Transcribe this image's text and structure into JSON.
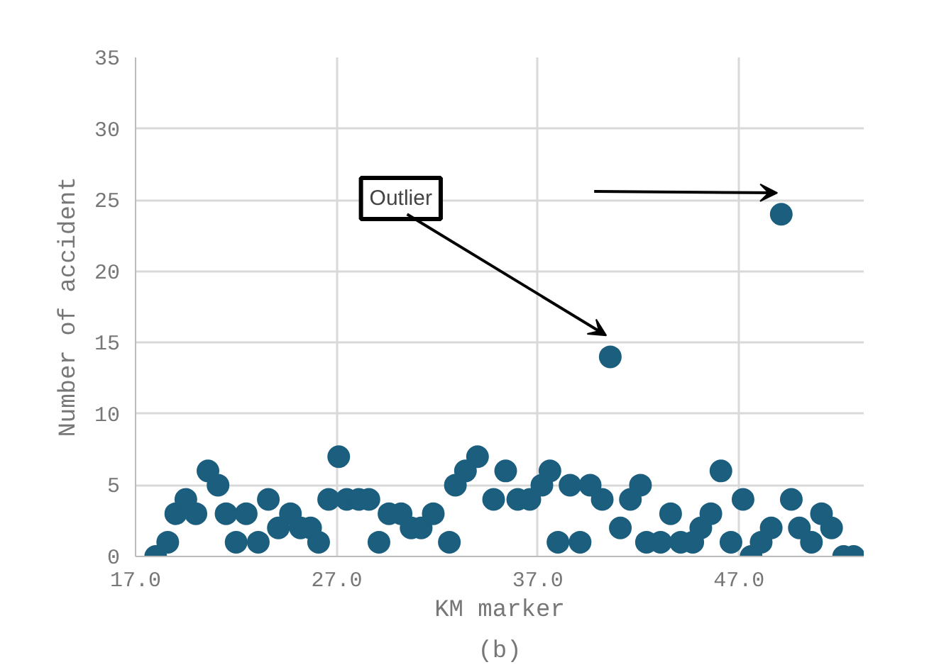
{
  "chart_data": {
    "type": "scatter",
    "xlabel": "KM marker",
    "ylabel": "Number of accident",
    "annotations": [
      "(b)",
      "Outlier"
    ],
    "x": [
      18.0,
      18.6,
      19.0,
      19.5,
      20.0,
      20.6,
      21.1,
      21.5,
      22.0,
      22.5,
      23.1,
      23.6,
      24.1,
      24.7,
      25.2,
      25.7,
      26.1,
      26.6,
      27.1,
      27.5,
      28.1,
      28.6,
      29.1,
      29.6,
      30.2,
      30.7,
      31.2,
      31.8,
      32.6,
      32.9,
      33.4,
      34.0,
      34.8,
      35.4,
      36.0,
      36.6,
      37.2,
      37.6,
      38.0,
      38.6,
      39.1,
      39.6,
      40.2,
      40.6,
      41.1,
      41.6,
      42.1,
      42.4,
      43.1,
      43.6,
      44.1,
      44.7,
      45.1,
      45.6,
      46.1,
      46.6,
      47.2,
      47.6,
      48.1,
      48.6,
      49.1,
      49.6,
      50.0,
      50.6,
      51.1,
      51.6,
      52.2,
      52.7
    ],
    "values": [
      0,
      1,
      3,
      4,
      3,
      6,
      5,
      3,
      1,
      3,
      1,
      4,
      2,
      3,
      2,
      2,
      1,
      4,
      7,
      4,
      4,
      4,
      1,
      3,
      3,
      2,
      2,
      3,
      1,
      5,
      6,
      7,
      4,
      6,
      4,
      4,
      5,
      6,
      1,
      5,
      1,
      5,
      4,
      14,
      2,
      4,
      5,
      1,
      1,
      3,
      1,
      1,
      2,
      3,
      6,
      1,
      4,
      0,
      1,
      2,
      24,
      4,
      2,
      1,
      3,
      2,
      0,
      0
    ],
    "color": "#1b5e7e",
    "marker": "circle",
    "xlim": [
      17,
      53.2
    ],
    "ylim": [
      0,
      35
    ],
    "xticks": [
      {
        "value": 17,
        "label": "17.0"
      },
      {
        "value": 27,
        "label": "27.0"
      },
      {
        "value": 37,
        "label": "37.0"
      },
      {
        "value": 47,
        "label": "47.0"
      }
    ],
    "yticks": [
      0,
      5,
      10,
      15,
      20,
      25,
      30,
      35
    ],
    "grid": true
  }
}
